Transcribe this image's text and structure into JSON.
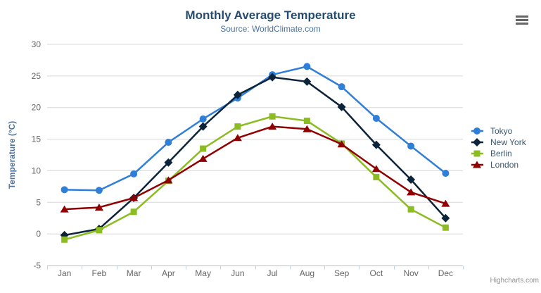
{
  "header": {
    "title": "Monthly Average Temperature",
    "subtitle": "Source: WorldClimate.com"
  },
  "credits": "Highcharts.com",
  "icons": {
    "menu": "hamburger-icon"
  },
  "colors": {
    "title": "#274b6d",
    "subtitle": "#4d759e",
    "axis_labels": "#666666",
    "gridline": "#d8d8d8",
    "axis_line": "#c0d0e0",
    "legend_text": "#3e576f",
    "credits": "#909090"
  },
  "chart_data": {
    "type": "line",
    "title": "Monthly Average Temperature",
    "subtitle": "Source: WorldClimate.com",
    "xlabel": "",
    "ylabel": "Temperature (°C)",
    "ylim": [
      -5,
      30
    ],
    "ytick_step": 5,
    "grid": true,
    "legend_position": "right",
    "categories": [
      "Jan",
      "Feb",
      "Mar",
      "Apr",
      "May",
      "Jun",
      "Jul",
      "Aug",
      "Sep",
      "Oct",
      "Nov",
      "Dec"
    ],
    "series": [
      {
        "name": "Tokyo",
        "color": "#2f7ed8",
        "marker": "circle",
        "values": [
          7.0,
          6.9,
          9.5,
          14.5,
          18.2,
          21.5,
          25.2,
          26.5,
          23.3,
          18.3,
          13.9,
          9.6
        ]
      },
      {
        "name": "New York",
        "color": "#0d233a",
        "marker": "diamond",
        "values": [
          -0.2,
          0.8,
          5.7,
          11.3,
          17.0,
          22.0,
          24.8,
          24.1,
          20.1,
          14.1,
          8.6,
          2.5
        ]
      },
      {
        "name": "Berlin",
        "color": "#8bbc21",
        "marker": "square",
        "values": [
          -0.9,
          0.6,
          3.5,
          8.4,
          13.5,
          17.0,
          18.6,
          17.9,
          14.3,
          9.0,
          3.9,
          1.0
        ]
      },
      {
        "name": "London",
        "color": "#910000",
        "marker": "triangle",
        "values": [
          3.9,
          4.2,
          5.7,
          8.5,
          11.9,
          15.2,
          17.0,
          16.6,
          14.2,
          10.3,
          6.6,
          4.8
        ]
      }
    ]
  }
}
